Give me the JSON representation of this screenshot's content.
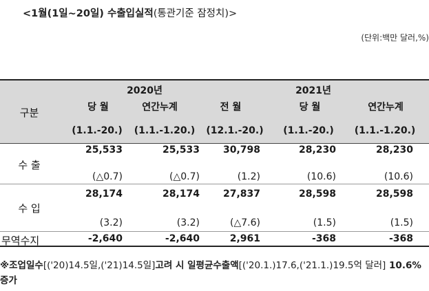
{
  "title": "<1월(1일~20일) 수출입실적",
  "title_sub": "(통관기준 잠정치)>",
  "unit": "(단위:백만 달러,%)",
  "header": {
    "col_label": "구분",
    "year_2020": "2020년",
    "year_2021": "2021년",
    "cols": [
      "당 월",
      "연간누계",
      "전 월",
      "당 월",
      "연간누계"
    ],
    "periods": [
      "(1.1.-20.)",
      "(1.1.-1.20.)",
      "(12.1.-20.)",
      "(1.1.-20.)",
      "(1.1.-1.20.)"
    ]
  },
  "rows": [
    {
      "label": "수 출",
      "values": [
        "25,533",
        "25,533",
        "30,798",
        "28,230",
        "28,230"
      ],
      "changes": [
        "(△0.7)",
        "(△0.7)",
        "(1.2)",
        "(10.6)",
        "(10.6)"
      ]
    },
    {
      "label": "수 입",
      "values": [
        "28,174",
        "28,174",
        "27,837",
        "28,598",
        "28,598"
      ],
      "changes": [
        "(3.2)",
        "(3.2)",
        "(△7.6)",
        "(1.5)",
        "(1.5)"
      ]
    },
    {
      "label": "무역수지",
      "values": [
        "-2,640",
        "-2,640",
        "2,961",
        "-368",
        "-368"
      ]
    }
  ],
  "footnote": {
    "p1": "※조업일수",
    "p2": "[('20)14.5일,('21)14.5일]",
    "p3": "고려 시 일평균수출액",
    "p4": "[('20.1.)17.6,('21.1.)19.5억 달러]",
    "p5": " 10.6% 증가"
  }
}
